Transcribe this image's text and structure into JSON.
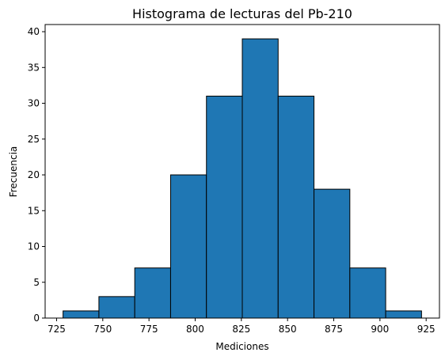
{
  "chart_data": {
    "type": "bar",
    "subtype": "histogram",
    "title": "Histograma de lecturas del Pb-210",
    "xlabel": "Mediciones",
    "ylabel": "Frecuencia",
    "bin_edges": [
      728.5,
      747.9,
      767.3,
      786.7,
      806.1,
      825.5,
      844.9,
      864.3,
      883.7,
      903.1,
      922.5
    ],
    "values": [
      1,
      3,
      7,
      20,
      31,
      39,
      31,
      18,
      7,
      1
    ],
    "xlim": [
      718.8,
      932.2
    ],
    "ylim": [
      0,
      41
    ],
    "x_ticks": [
      725,
      750,
      775,
      800,
      825,
      850,
      875,
      900,
      925
    ],
    "y_ticks": [
      0,
      5,
      10,
      15,
      20,
      25,
      30,
      35,
      40
    ],
    "bar_color": "#1f77b4",
    "edge_color": "#000000",
    "grid": false,
    "legend": "none"
  }
}
